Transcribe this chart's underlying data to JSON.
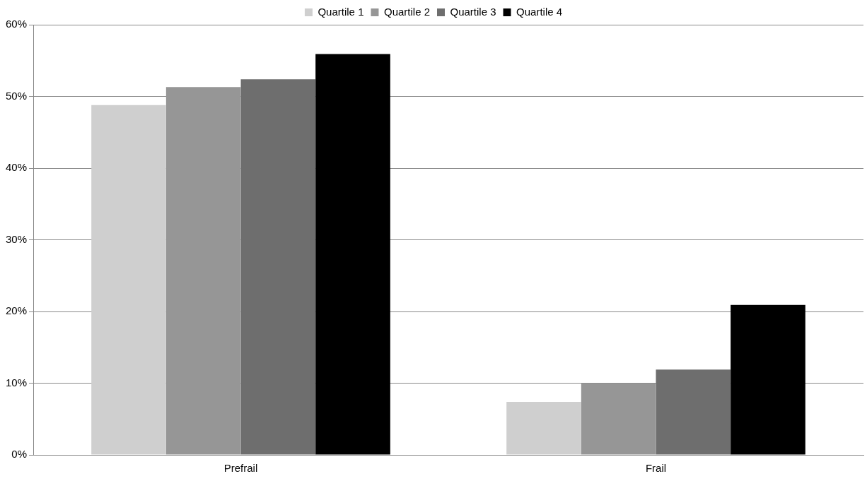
{
  "chart_data": {
    "type": "bar",
    "categories": [
      "Prefrail",
      "Frail"
    ],
    "series": [
      {
        "name": "Quartile 1",
        "color": "#cfcfcf",
        "values": [
          48.8,
          7.4
        ]
      },
      {
        "name": "Quartile 2",
        "color": "#969696",
        "values": [
          51.3,
          10.0
        ]
      },
      {
        "name": "Quartile 3",
        "color": "#6e6e6e",
        "values": [
          52.4,
          11.9
        ]
      },
      {
        "name": "Quartile 4",
        "color": "#000000",
        "values": [
          55.9,
          20.9
        ]
      }
    ],
    "ylim": [
      0,
      60
    ],
    "yticks": [
      {
        "value": 0,
        "label": "0%"
      },
      {
        "value": 10,
        "label": "10%"
      },
      {
        "value": 20,
        "label": "20%"
      },
      {
        "value": 30,
        "label": "30%"
      },
      {
        "value": 40,
        "label": "40%"
      },
      {
        "value": 50,
        "label": "50%"
      },
      {
        "value": 60,
        "label": "60%"
      }
    ],
    "grid": "y",
    "legend": "top"
  }
}
